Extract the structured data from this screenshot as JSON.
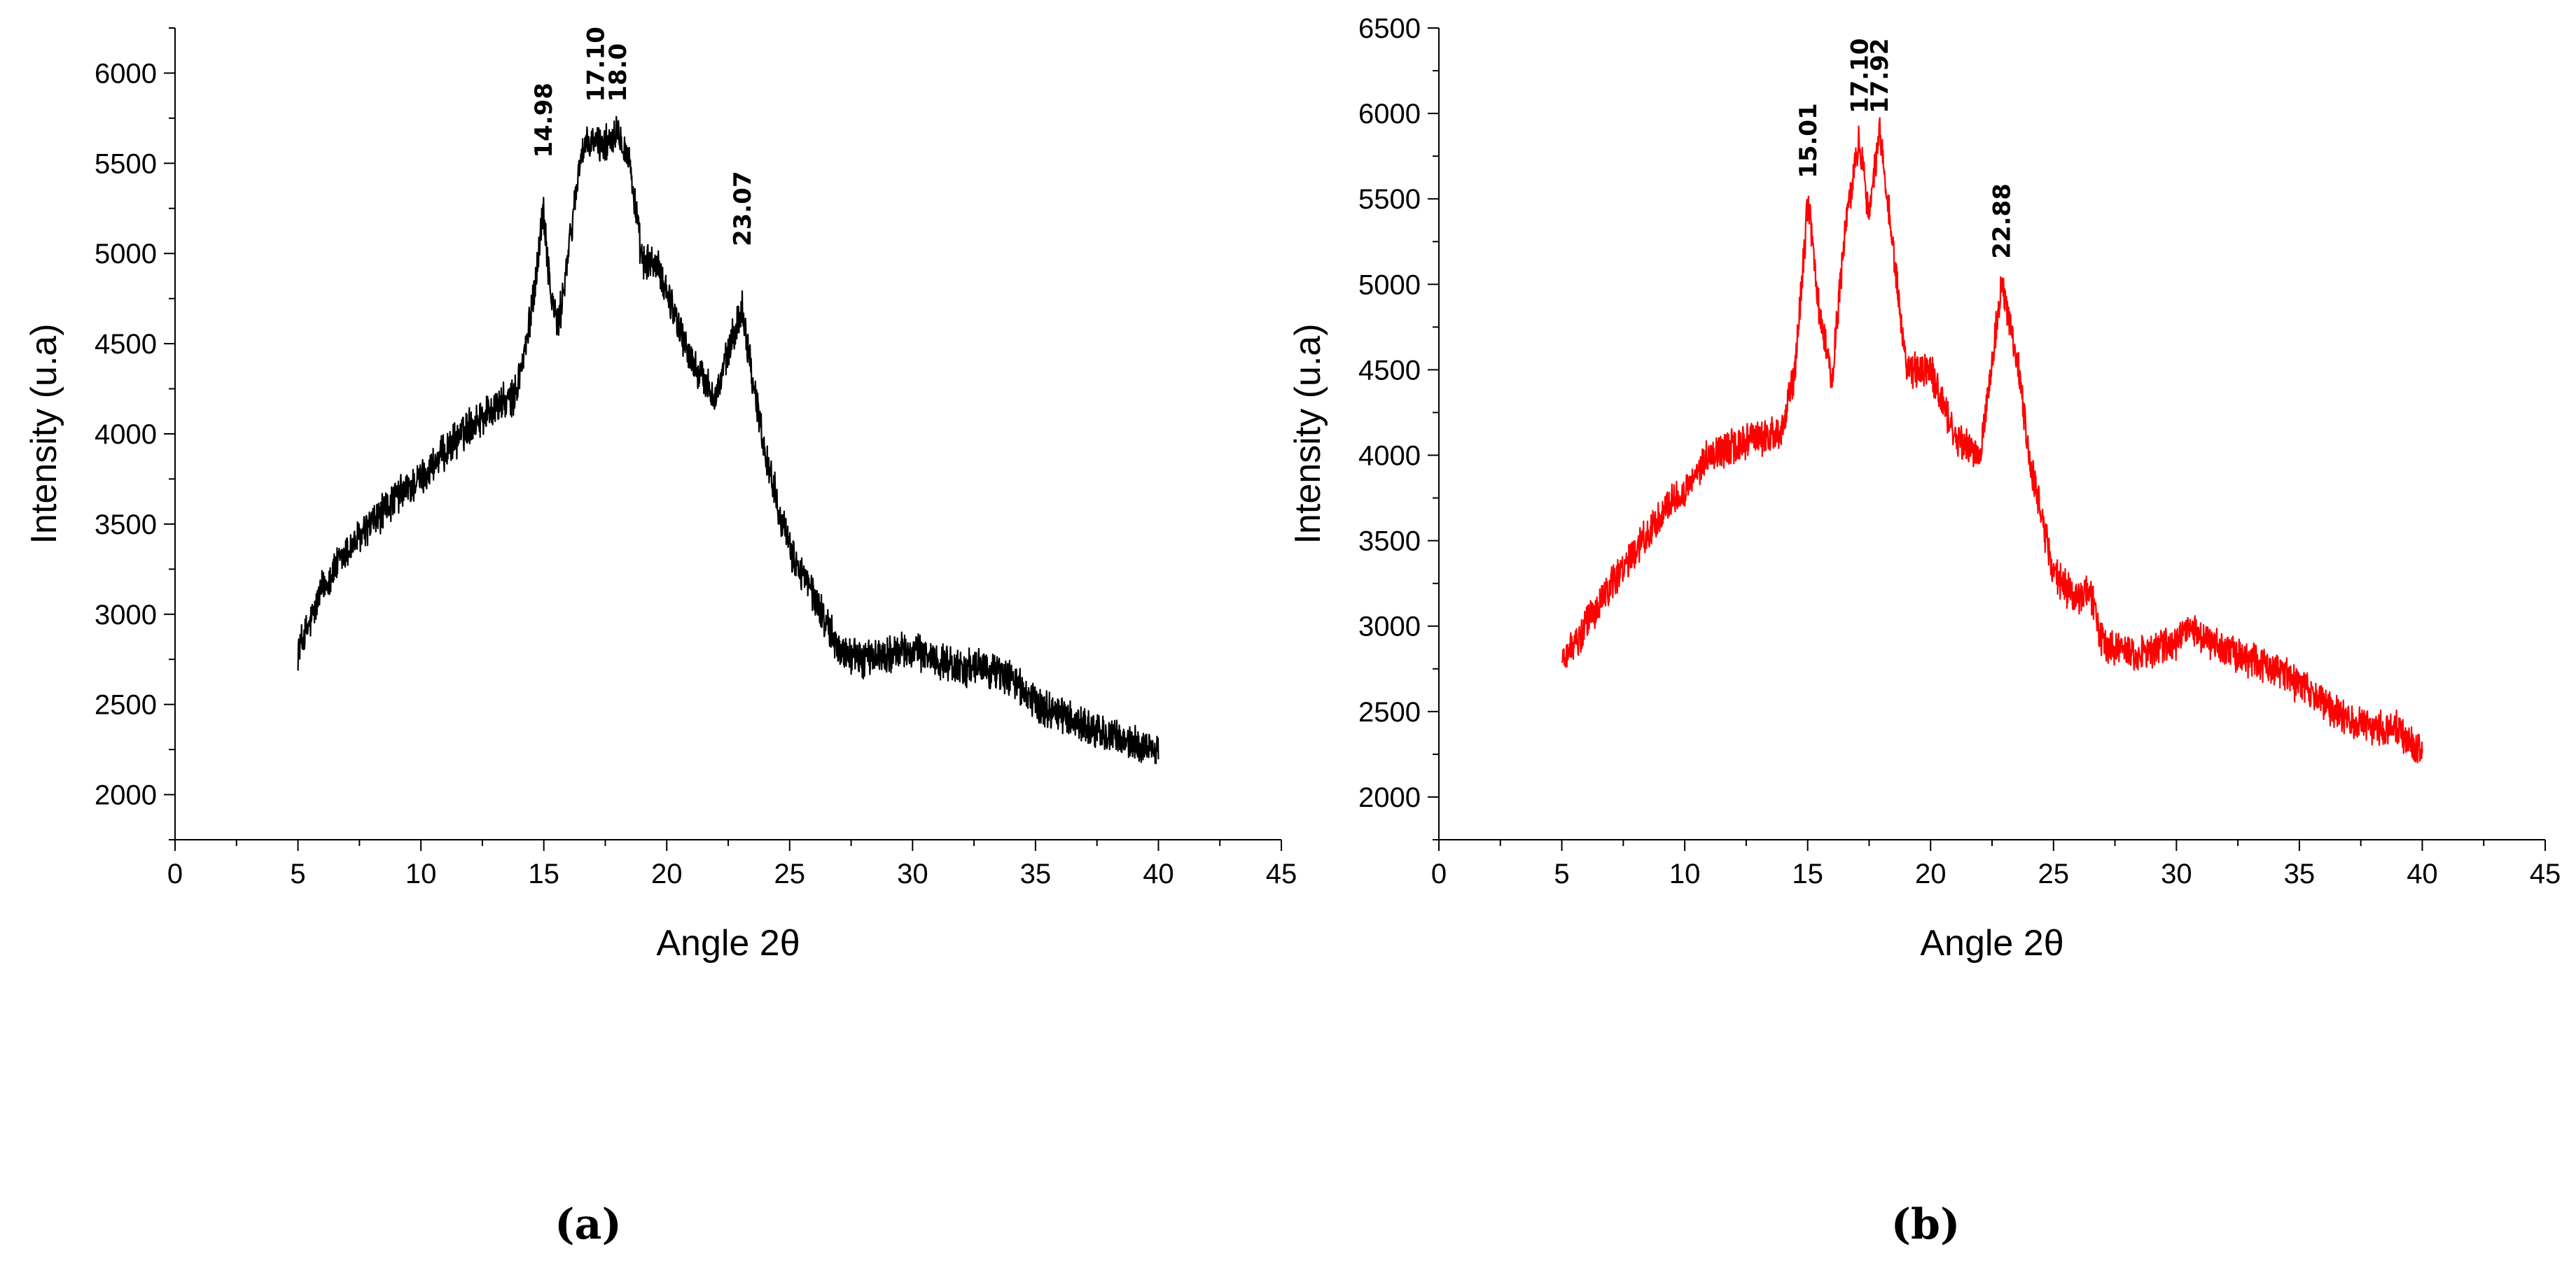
{
  "chart_data": [
    {
      "id": "a",
      "type": "line",
      "panel_label": "(a)",
      "xlabel": "Angle 2θ",
      "ylabel": "Intensity (u.a)",
      "xlim": [
        0,
        45
      ],
      "ylim": [
        1750,
        6250
      ],
      "xticks": [
        0,
        5,
        10,
        15,
        20,
        25,
        30,
        35,
        40,
        45
      ],
      "yticks": [
        2000,
        2500,
        3000,
        3500,
        4000,
        4500,
        5000,
        5500,
        6000
      ],
      "color": "#000000",
      "noise": 90,
      "x": [
        5,
        5.5,
        6,
        7,
        8,
        9,
        10,
        11,
        12,
        13,
        13.8,
        14.3,
        14.7,
        14.98,
        15.3,
        15.6,
        16,
        16.5,
        17,
        17.5,
        18,
        18.5,
        19,
        19.5,
        20,
        21,
        22,
        22.5,
        23.07,
        23.5,
        24,
        25,
        26,
        27,
        28,
        29,
        30,
        31,
        32,
        33,
        34,
        35,
        36,
        37,
        38,
        39,
        40
      ],
      "y": [
        2800,
        2950,
        3150,
        3350,
        3500,
        3650,
        3750,
        3900,
        4050,
        4150,
        4200,
        4500,
        4900,
        5250,
        4750,
        4600,
        5000,
        5550,
        5620,
        5600,
        5700,
        5500,
        4950,
        4950,
        4800,
        4400,
        4200,
        4450,
        4700,
        4300,
        3900,
        3350,
        3100,
        2800,
        2750,
        2780,
        2800,
        2750,
        2700,
        2700,
        2650,
        2500,
        2450,
        2380,
        2320,
        2280,
        2250
      ],
      "peaks": [
        {
          "label": "14.98",
          "x": 14.98,
          "y": 5530
        },
        {
          "label": "17.10",
          "x": 17.1,
          "y": 5840
        },
        {
          "label": "18.0",
          "x": 18.0,
          "y": 5840
        },
        {
          "label": "23.07",
          "x": 23.07,
          "y": 5040
        }
      ]
    },
    {
      "id": "b",
      "type": "line",
      "panel_label": "(b)",
      "xlabel": "Angle 2θ",
      "ylabel": "Intensity (u.a)",
      "xlim": [
        0,
        45
      ],
      "ylim": [
        1750,
        6500
      ],
      "xticks": [
        0,
        5,
        10,
        15,
        20,
        25,
        30,
        35,
        40,
        45
      ],
      "yticks": [
        2000,
        2500,
        3000,
        3500,
        4000,
        4500,
        5000,
        5500,
        6000,
        6500
      ],
      "color": "#ff0000",
      "noise": 90,
      "x": [
        5,
        6,
        7,
        8,
        9,
        10,
        11,
        12,
        13,
        14,
        14.5,
        15.01,
        15.5,
        16,
        16.5,
        17.1,
        17.5,
        17.92,
        18.5,
        19,
        19.5,
        20,
        21,
        22,
        22.5,
        22.88,
        23.5,
        24,
        25,
        26,
        26.5,
        27,
        28,
        29,
        30,
        30.5,
        31,
        32,
        33,
        34,
        35,
        36,
        37,
        38,
        39,
        40
      ],
      "y": [
        2800,
        3000,
        3250,
        3450,
        3650,
        3800,
        4000,
        4050,
        4100,
        4150,
        4500,
        5500,
        4800,
        4450,
        5300,
        5850,
        5400,
        5900,
        5200,
        4500,
        4500,
        4500,
        4100,
        4000,
        4550,
        5000,
        4600,
        4000,
        3300,
        3150,
        3200,
        2900,
        2850,
        2850,
        2900,
        3000,
        2950,
        2850,
        2800,
        2750,
        2650,
        2550,
        2450,
        2400,
        2400,
        2250
      ],
      "peaks": [
        {
          "label": "15.01",
          "x": 15.01,
          "y": 5620
        },
        {
          "label": "17.10",
          "x": 17.1,
          "y": 6000
        },
        {
          "label": "17.92",
          "x": 17.92,
          "y": 6000
        },
        {
          "label": "22.88",
          "x": 22.88,
          "y": 5150
        }
      ]
    }
  ]
}
